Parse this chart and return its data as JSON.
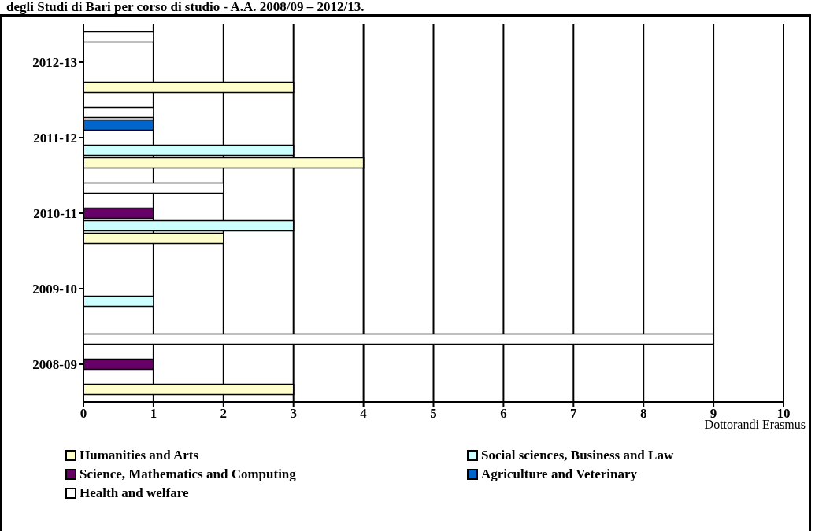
{
  "chart_data": {
    "type": "bar",
    "orientation": "horizontal",
    "title": "degli Studi di Bari per corso di studio - A.A. 2008/09 – 2012/13.",
    "xlabel": "Dottorandi Erasmus",
    "categories": [
      "2012-13",
      "2011-12",
      "2010-11",
      "2009-10",
      "2008-09"
    ],
    "series": [
      {
        "name": "Humanities and Arts",
        "color": "#ffffcc",
        "values": [
          3,
          4,
          2,
          null,
          3
        ]
      },
      {
        "name": "Social sciences, Business and Law",
        "color": "#ccffff",
        "values": [
          null,
          3,
          3,
          1,
          null
        ]
      },
      {
        "name": "Science, Mathematics and Computing",
        "color": "#660066",
        "values": [
          null,
          null,
          1,
          null,
          1
        ]
      },
      {
        "name": "Agriculture and Veterinary",
        "color": "#0066cc",
        "values": [
          null,
          1,
          null,
          null,
          null
        ]
      },
      {
        "name": "Health and welfare",
        "color": "#ffffff",
        "values": [
          1,
          1,
          2,
          null,
          9
        ]
      }
    ],
    "xlim": [
      0,
      10
    ],
    "xticks": [
      0,
      1,
      2,
      3,
      4,
      5,
      6,
      7,
      8,
      9,
      10
    ],
    "grid": "x",
    "legend": "bottom"
  }
}
